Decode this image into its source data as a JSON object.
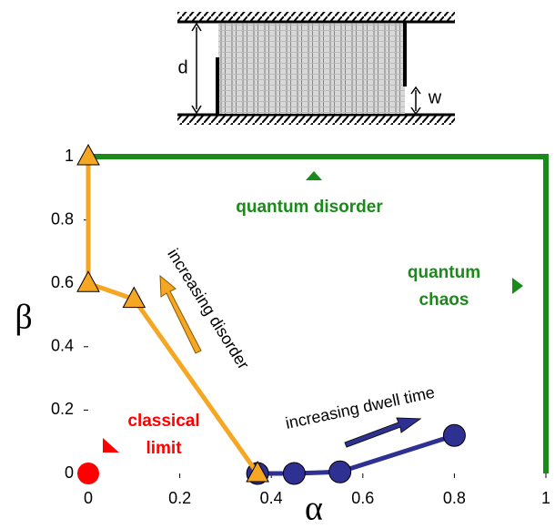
{
  "inset": {
    "label_d": "d",
    "label_w": "w"
  },
  "chart_data": {
    "type": "line",
    "xlabel": "α",
    "ylabel": "β",
    "xlim": [
      0,
      1
    ],
    "ylim": [
      0,
      1
    ],
    "xticks": [
      0,
      0.2,
      0.4,
      0.6,
      0.8,
      1
    ],
    "yticks": [
      0,
      0.2,
      0.4,
      0.6,
      0.8,
      1
    ],
    "series": [
      {
        "color": "#1a8a1a",
        "marker": "none",
        "x": [
          0,
          1,
          1
        ],
        "values": [
          1,
          1,
          0
        ]
      },
      {
        "color": "#2e3192",
        "marker": "circle",
        "x": [
          0.37,
          0.45,
          0.55,
          0.8
        ],
        "values": [
          0,
          0,
          0.005,
          0.12
        ]
      },
      {
        "color": "#f5a623",
        "marker": "triangle",
        "x": [
          0,
          0,
          0.1,
          0.37
        ],
        "values": [
          1,
          0.6,
          0.55,
          0
        ]
      },
      {
        "color": "#ff0000",
        "marker": "circle",
        "x": [
          0
        ],
        "values": [
          0
        ]
      }
    ],
    "annotations": [
      {
        "lines": [
          "quantum disorder"
        ],
        "color": "#1a8a1a"
      },
      {
        "lines": [
          "quantum",
          "chaos"
        ],
        "color": "#1a8a1a"
      },
      {
        "lines": [
          "classical",
          "limit"
        ],
        "color": "#ff0000"
      },
      {
        "lines": [
          "increasing disorder"
        ],
        "color": "#000000"
      },
      {
        "lines": [
          "increasing dwell time"
        ],
        "color": "#000000"
      }
    ]
  }
}
